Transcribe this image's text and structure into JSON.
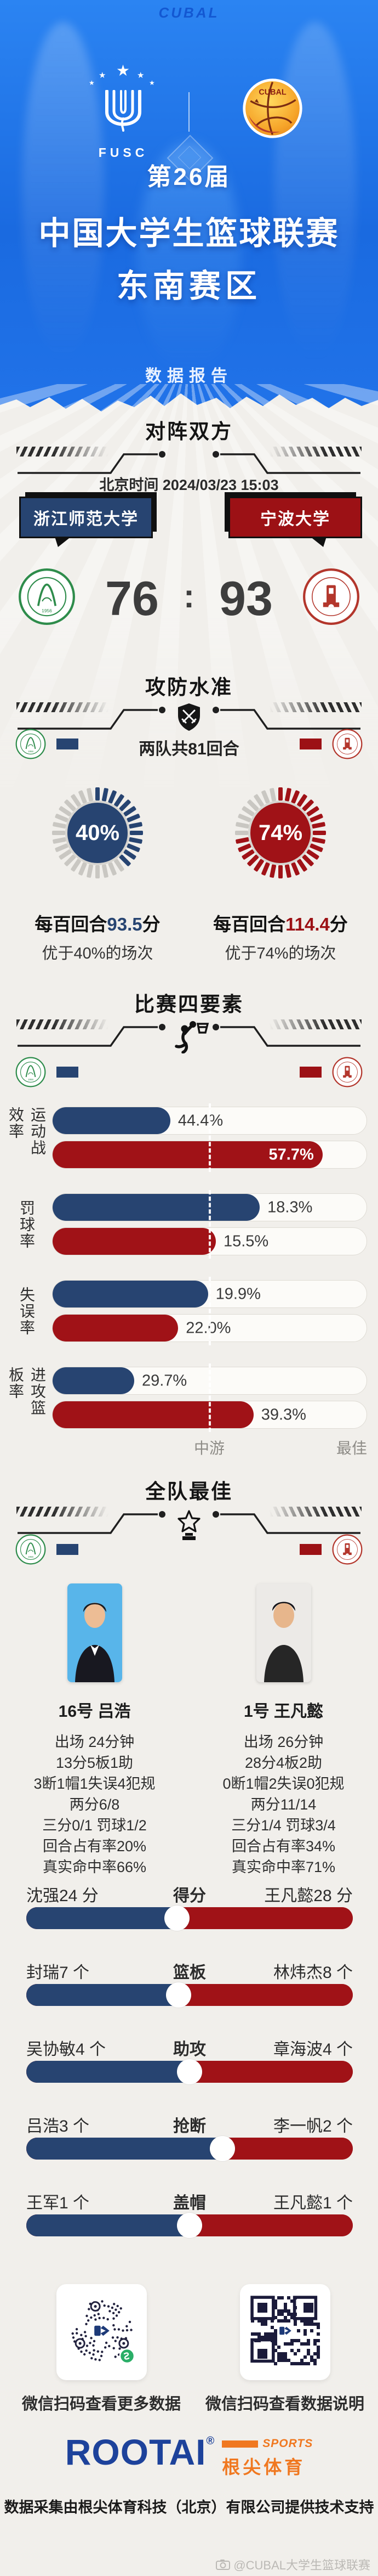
{
  "colors": {
    "home_blue": "#274471",
    "away_red": "#9c1115",
    "bar_red": "#a01217",
    "hero_blue": "#1a6ae0",
    "brand_blue": "#1d429b",
    "brand_orange": "#f07820"
  },
  "hero": {
    "watermark": "CUBAL",
    "fusc_label": "FUSC",
    "cubal_label": "CUBAL",
    "edition": "第26届",
    "title": "中国大学生篮球联赛",
    "region": "东南赛区",
    "report": "数据报告"
  },
  "matchup": {
    "section_title": "对阵双方",
    "time": "北京时间 2024/03/23 15:03",
    "home_name": "浙江师范大学",
    "away_name": "宁波大学",
    "home_score": "76",
    "score_sep": ":",
    "away_score": "93"
  },
  "pace": {
    "section_title": "攻防水准",
    "center_note": "两队共81回合",
    "home": {
      "gauge": 40,
      "gauge_label": "40%",
      "line1_prefix": "每百回合",
      "line1_value": "93.5",
      "line1_unit": "分",
      "line2": "优于40%的场次"
    },
    "away": {
      "gauge": 74,
      "gauge_label": "74%",
      "line1_prefix": "每百回合",
      "line1_value": "114.4",
      "line1_unit": "分",
      "line2": "优于74%的场次"
    }
  },
  "four_factors": {
    "section_title": "比赛四要素",
    "axis_mid": "中游",
    "axis_best": "最佳",
    "rows": [
      {
        "label": "运动战效率",
        "home": {
          "text": "44.4%",
          "fill": 37.5,
          "inside": false
        },
        "away": {
          "text": "57.7%",
          "fill": 86,
          "inside": true
        }
      },
      {
        "label": "罚球率",
        "home": {
          "text": "18.3%",
          "fill": 66,
          "inside": false
        },
        "away": {
          "text": "15.5%",
          "fill": 52,
          "inside": false
        }
      },
      {
        "label": "失误率",
        "home": {
          "text": "19.9%",
          "fill": 49.5,
          "inside": false
        },
        "away": {
          "text": "22.0%",
          "fill": 40,
          "inside": false
        }
      },
      {
        "label": "进攻篮板率",
        "home": {
          "text": "29.7%",
          "fill": 26,
          "inside": false
        },
        "away": {
          "text": "39.3%",
          "fill": 64,
          "inside": false
        }
      }
    ]
  },
  "team_best": {
    "section_title": "全队最佳",
    "home_player": {
      "name": "16号 吕浩",
      "lines": [
        "出场 24分钟",
        "13分5板1助",
        "3断1帽1失误4犯规",
        "两分6/8",
        "三分0/1 罚球1/2",
        "回合占有率20%",
        "真实命中率66%"
      ]
    },
    "away_player": {
      "name": "1号 王凡懿",
      "lines": [
        "出场 26分钟",
        "28分4板2助",
        "0断1帽2失误0犯规",
        "两分11/14",
        "三分1/4 罚球3/4",
        "回合占有率34%",
        "真实命中率71%"
      ]
    },
    "duels": [
      {
        "category": "得分",
        "home_label": "沈强24 分",
        "away_label": "王凡懿28 分",
        "home_share": 46.2
      },
      {
        "category": "篮板",
        "home_label": "封瑞7 个",
        "away_label": "林炜杰8 个",
        "home_share": 46.7
      },
      {
        "category": "助攻",
        "home_label": "吴协敏4 个",
        "away_label": "章海波4 个",
        "home_share": 50
      },
      {
        "category": "抢断",
        "home_label": "吕浩3 个",
        "away_label": "李一帆2 个",
        "home_share": 60
      },
      {
        "category": "盖帽",
        "home_label": "王军1 个",
        "away_label": "王凡懿1 个",
        "home_share": 50
      }
    ]
  },
  "footer": {
    "qr_left_caption": "微信扫码查看更多数据",
    "qr_right_caption": "微信扫码查看数据说明",
    "brand": "ROOTAI",
    "brand_reg": "®",
    "brand_sports": "SPORTS",
    "brand_cn": "根尖体育",
    "tagline": "数据采集由根尖体育科技（北京）有限公司提供技术支持",
    "watermark": "@CUBAL大学生篮球联赛"
  },
  "chart_data": [
    {
      "type": "bar",
      "title": "对阵双方比分",
      "categories": [
        "浙江师范大学",
        "宁波大学"
      ],
      "values": [
        76,
        93
      ],
      "annotations": [
        "北京时间 2024/03/23 15:03"
      ]
    },
    {
      "type": "bar",
      "title": "攻防水准",
      "subtitle": "两队共81回合",
      "categories": [
        "浙江师范大学",
        "宁波大学"
      ],
      "values": [
        40,
        74
      ],
      "unit": "百分位",
      "ylim": [
        0,
        100
      ],
      "annotations": [
        "每百回合93.5分 优于40%的场次",
        "每百回合114.4分 优于74%的场次"
      ]
    },
    {
      "type": "bar",
      "title": "比赛四要素",
      "categories": [
        "运动战效率",
        "罚球率",
        "失误率",
        "进攻篮板率"
      ],
      "series": [
        {
          "name": "浙江师范大学",
          "values": [
            44.4,
            18.3,
            19.9,
            29.7
          ]
        },
        {
          "name": "宁波大学",
          "values": [
            57.7,
            15.5,
            22.0,
            39.3
          ]
        }
      ],
      "unit": "%",
      "axis_ticks": [
        "中游",
        "最佳"
      ],
      "legend_position": "top"
    },
    {
      "type": "bar",
      "title": "全队最佳对位",
      "categories": [
        "得分",
        "篮板",
        "助攻",
        "抢断",
        "盖帽"
      ],
      "series": [
        {
          "name": "浙江师范大学",
          "players": [
            "沈强",
            "封瑞",
            "吴协敏",
            "吕浩",
            "王军"
          ],
          "values": [
            24,
            7,
            4,
            3,
            1
          ]
        },
        {
          "name": "宁波大学",
          "players": [
            "王凡懿",
            "林炜杰",
            "章海波",
            "李一帆",
            "王凡懿"
          ],
          "values": [
            28,
            8,
            4,
            2,
            1
          ]
        }
      ]
    }
  ]
}
